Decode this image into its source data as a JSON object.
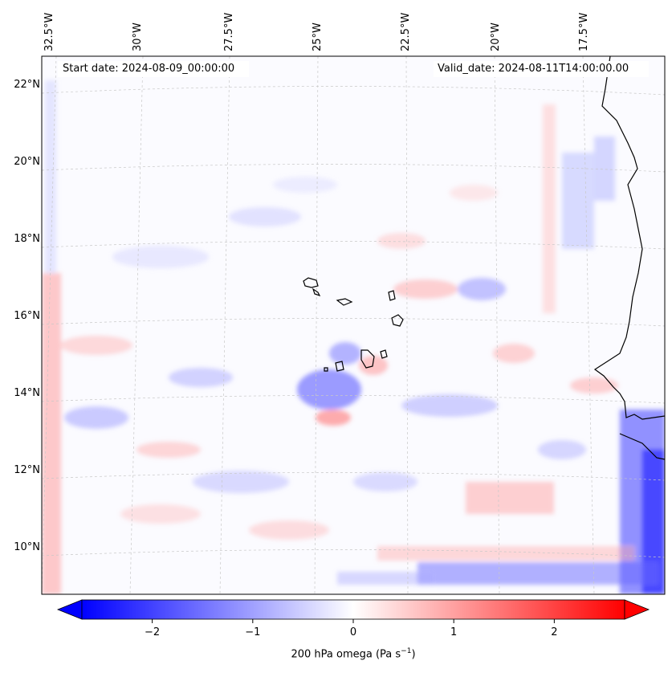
{
  "map": {
    "start_date": "Start date: 2024-08-09_00:00:00",
    "valid_date": "Valid_date: 2024-08-11T14:00:00.00",
    "lon_labels": [
      "32.5°W",
      "30°W",
      "27.5°W",
      "25°W",
      "22.5°W",
      "20°W",
      "17.5°W"
    ],
    "lat_labels": [
      "22°N",
      "20°N",
      "18°N",
      "16°N",
      "14°N",
      "12°N",
      "10°N"
    ],
    "variable": "200 hPa omega",
    "units": "(Pa s",
    "units_exp": "−1",
    "units_close": ")",
    "projection": "lambert-conformal",
    "colormap": "bwr",
    "colors": {
      "low": "#0000ff",
      "mid": "#ffffff",
      "high": "#ff0000",
      "coast": "#000000",
      "grid": "#b0b0b0"
    },
    "extent": {
      "lon_min": -33.0,
      "lon_max": -15.0,
      "lat_min": 9.0,
      "lat_max": 23.0
    }
  },
  "colorbar": {
    "vmin": -2.7,
    "vmax": 2.7,
    "tick_values": [
      -2,
      -1,
      0,
      1,
      2
    ],
    "tick_labels": [
      "−2",
      "−1",
      "0",
      "1",
      "2"
    ],
    "extend": "both"
  }
}
